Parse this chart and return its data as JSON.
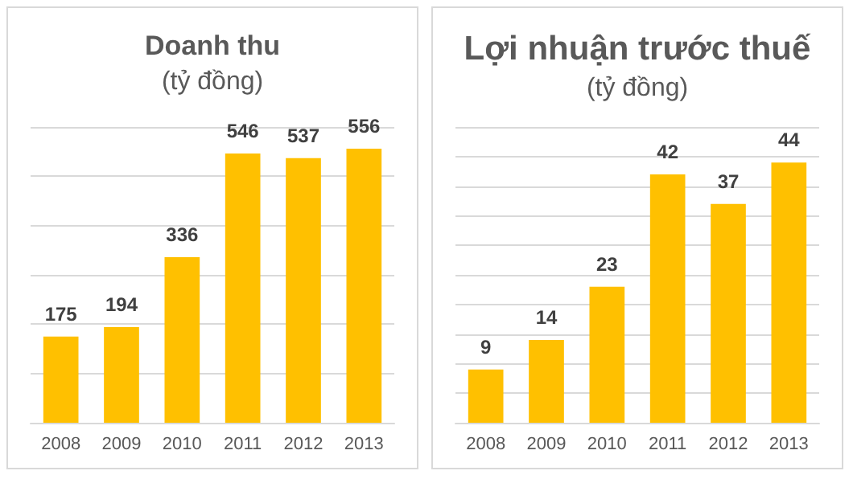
{
  "chart_data": [
    {
      "type": "bar",
      "title": "Doanh thu",
      "subtitle": "(tỷ đồng)",
      "categories": [
        "2008",
        "2009",
        "2010",
        "2011",
        "2012",
        "2013"
      ],
      "values": [
        175,
        194,
        336,
        546,
        537,
        556
      ],
      "color": "#ffc000",
      "data_labels": true,
      "grid": "y",
      "tick_labels": "x",
      "ylim": [
        0,
        600
      ],
      "yticks": [
        {
          "value": 0,
          "label": null
        },
        {
          "value": 100,
          "label": null
        },
        {
          "value": 200,
          "label": null
        },
        {
          "value": 300,
          "label": null
        },
        {
          "value": 400,
          "label": null
        },
        {
          "value": 500,
          "label": null
        },
        {
          "value": 600,
          "label": null
        }
      ]
    },
    {
      "type": "bar",
      "title": "Lợi nhuận trước thuế",
      "subtitle": "(tỷ đồng)",
      "categories": [
        "2008",
        "2009",
        "2010",
        "2011",
        "2012",
        "2013"
      ],
      "values": [
        9,
        14,
        23,
        42,
        37,
        44
      ],
      "color": "#ffc000",
      "data_labels": true,
      "grid": "y",
      "tick_labels": "x",
      "ylim": [
        0,
        50
      ],
      "yticks": [
        {
          "value": 0,
          "label": null
        },
        {
          "value": 5,
          "label": null
        },
        {
          "value": 10,
          "label": null
        },
        {
          "value": 15,
          "label": null
        },
        {
          "value": 20,
          "label": null
        },
        {
          "value": 25,
          "label": null
        },
        {
          "value": 30,
          "label": null
        },
        {
          "value": 35,
          "label": null
        },
        {
          "value": 40,
          "label": null
        },
        {
          "value": 45,
          "label": null
        },
        {
          "value": 50,
          "label": null
        }
      ]
    }
  ]
}
